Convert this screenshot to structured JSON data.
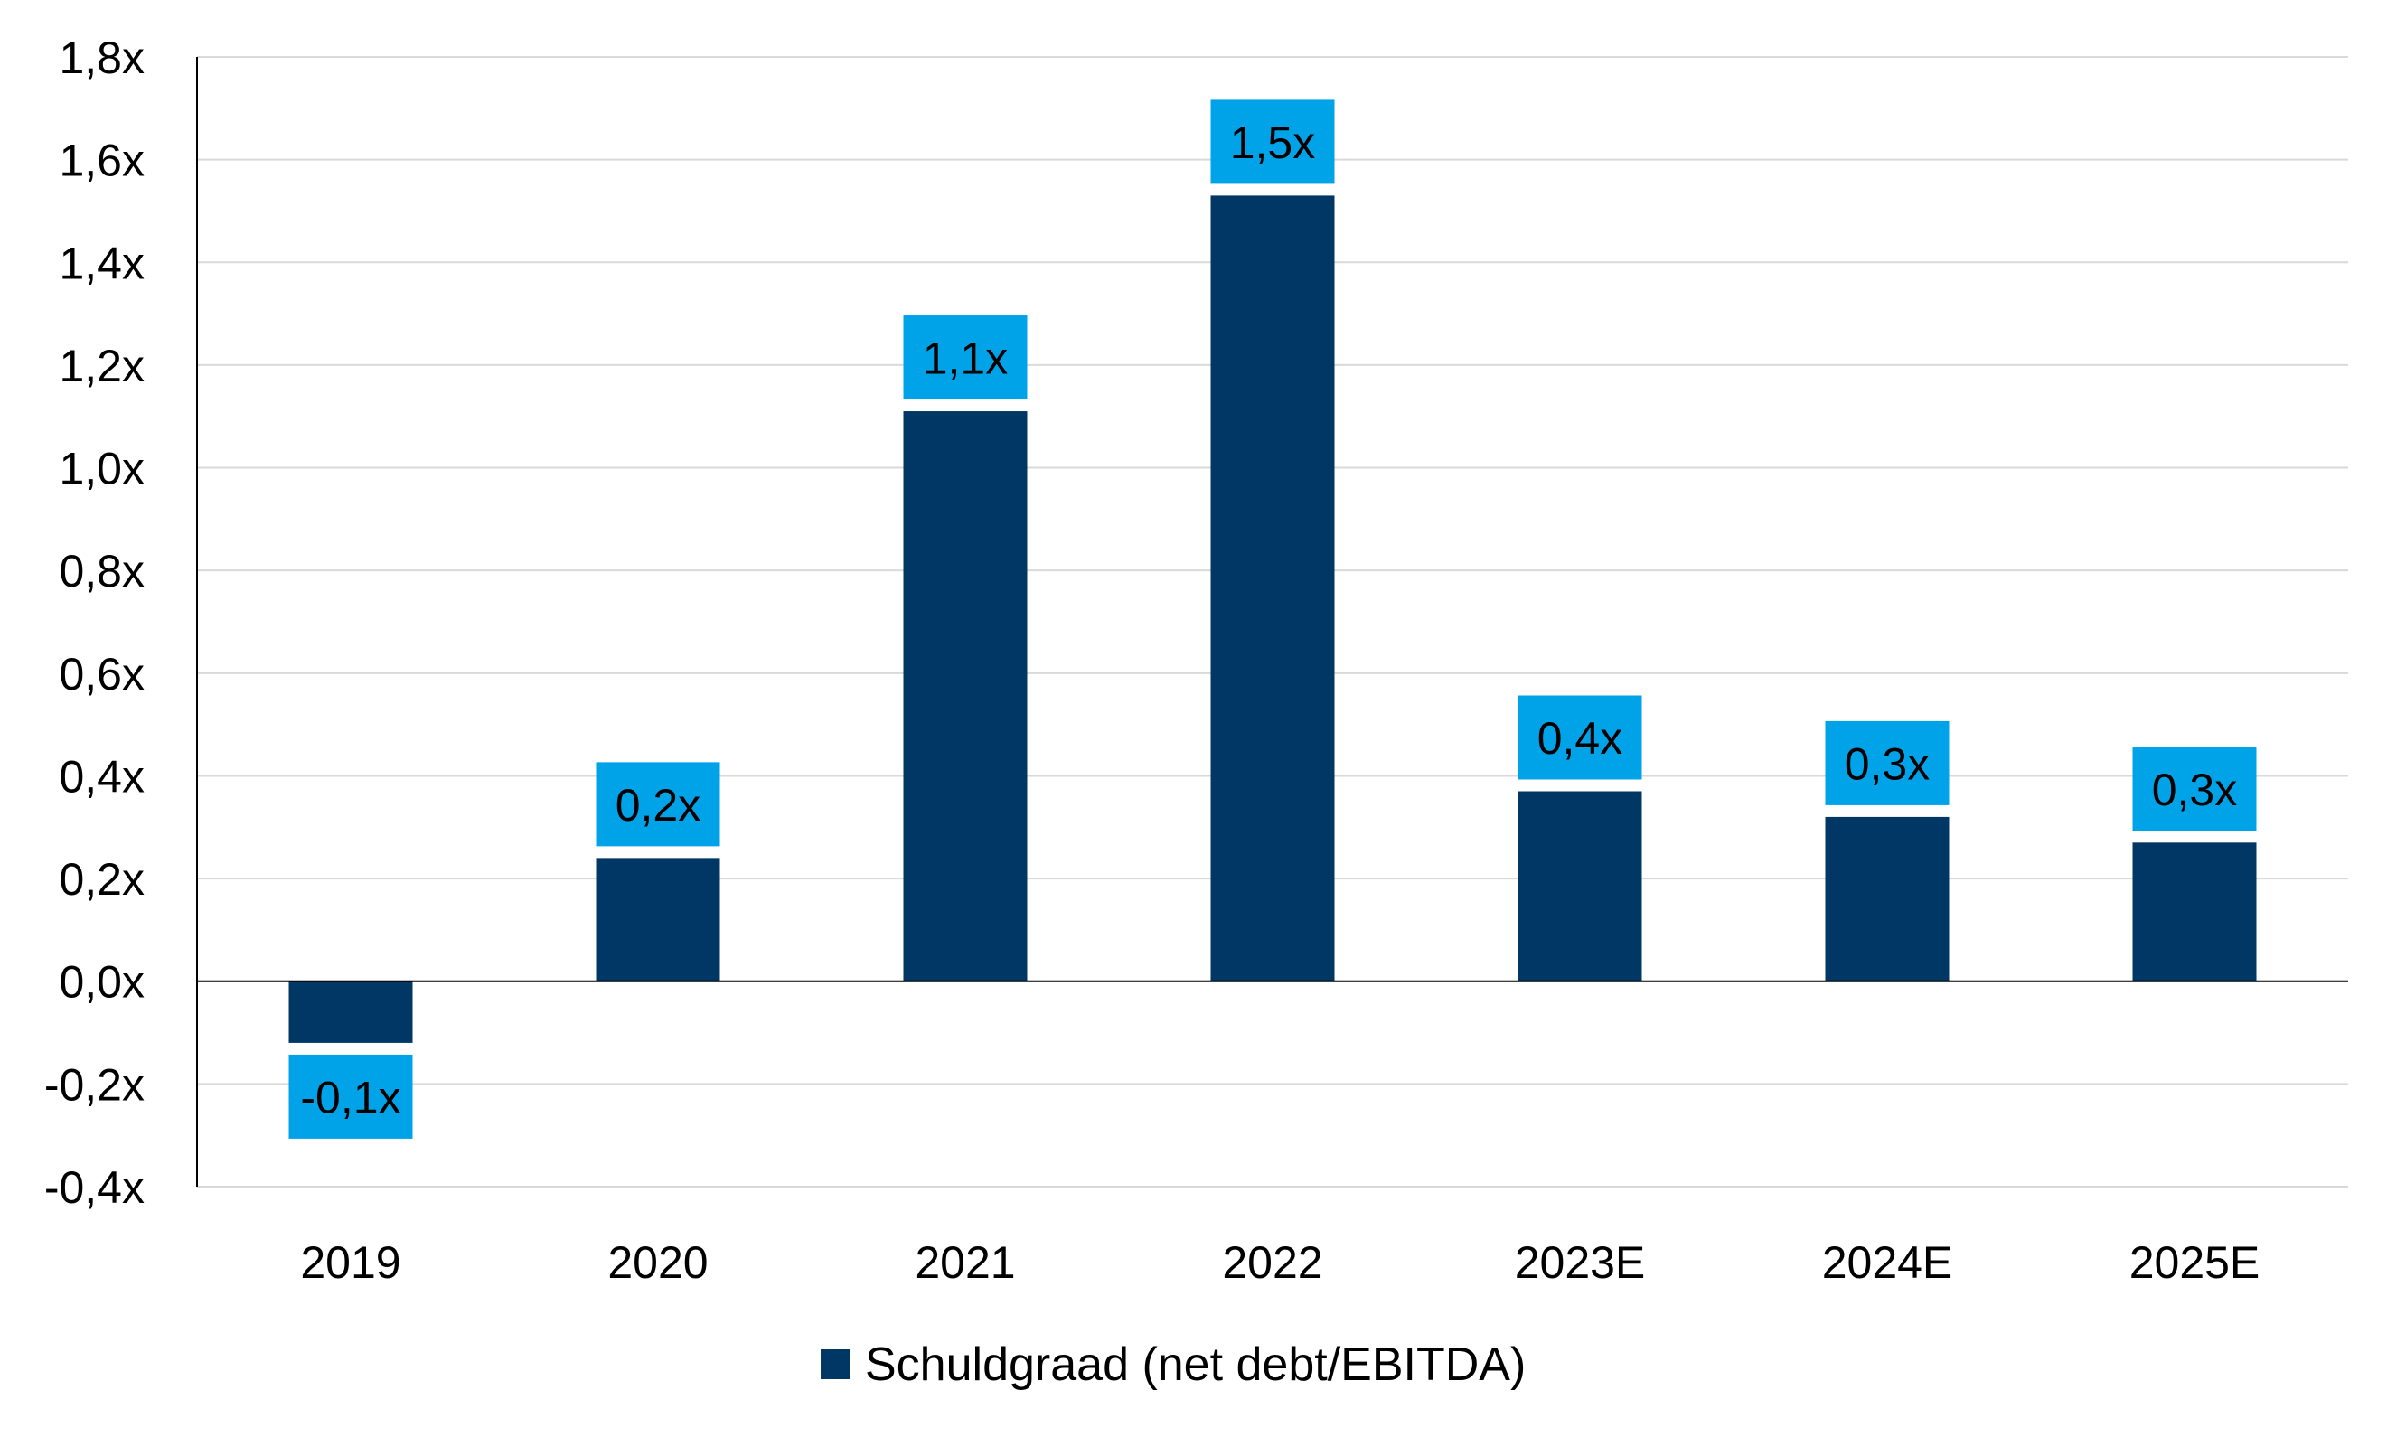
{
  "chart_data": {
    "type": "bar",
    "categories": [
      "2019",
      "2020",
      "2021",
      "2022",
      "2023E",
      "2024E",
      "2025E"
    ],
    "series": [
      {
        "name": "Schuldgraad (net debt/EBITDA)",
        "values": [
          -0.12,
          0.24,
          1.11,
          1.53,
          0.37,
          0.32,
          0.27
        ],
        "data_labels": [
          "-0,1x",
          "0,2x",
          "1,1x",
          "1,5x",
          "0,4x",
          "0,3x",
          "0,3x"
        ],
        "color": "#003764",
        "label_bg_color": "#00A3E8"
      }
    ],
    "ylim": [
      -0.4,
      1.8
    ],
    "yticks": [
      1.8,
      1.6,
      1.4,
      1.2,
      1.0,
      0.8,
      0.6,
      0.4,
      0.2,
      0.0,
      -0.2,
      -0.4
    ],
    "ytick_labels": [
      "1,8x",
      "1,6x",
      "1,4x",
      "1,2x",
      "1,0x",
      "0,8x",
      "0,6x",
      "0,4x",
      "0,2x",
      "0,0x",
      "-0,2x",
      "-0,4x"
    ],
    "grid": true,
    "legend_position": "bottom-center",
    "title": "",
    "xlabel": "",
    "ylabel": ""
  }
}
